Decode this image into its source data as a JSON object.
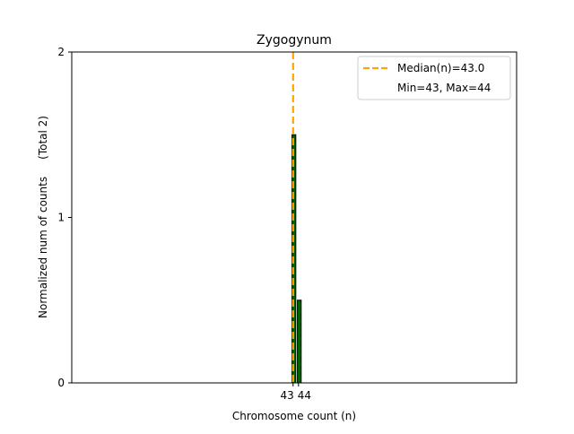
{
  "chart_data": {
    "type": "bar",
    "title": "Zygogynum",
    "xlabel": "Chromosome count (n)",
    "ylabel": "Normalized num of counts     (Total 2)",
    "categories": [
      43,
      44
    ],
    "values": [
      1.5,
      0.5
    ],
    "x_tick_labels": [
      "43",
      "44"
    ],
    "y_ticks": [
      0,
      1,
      2
    ],
    "y_tick_labels": [
      "0",
      "1",
      "2"
    ],
    "ylim": [
      0,
      2
    ],
    "xlim": [
      1.9,
      84.5
    ],
    "median": 43.0,
    "legend": {
      "placement": "top-right",
      "entries": [
        "Median(n)=43.0",
        "Min=43, Max=44"
      ]
    },
    "grid": false,
    "colors": {
      "bar": "#006400",
      "bar_edge": "#000000",
      "median": "#FFA500"
    }
  }
}
